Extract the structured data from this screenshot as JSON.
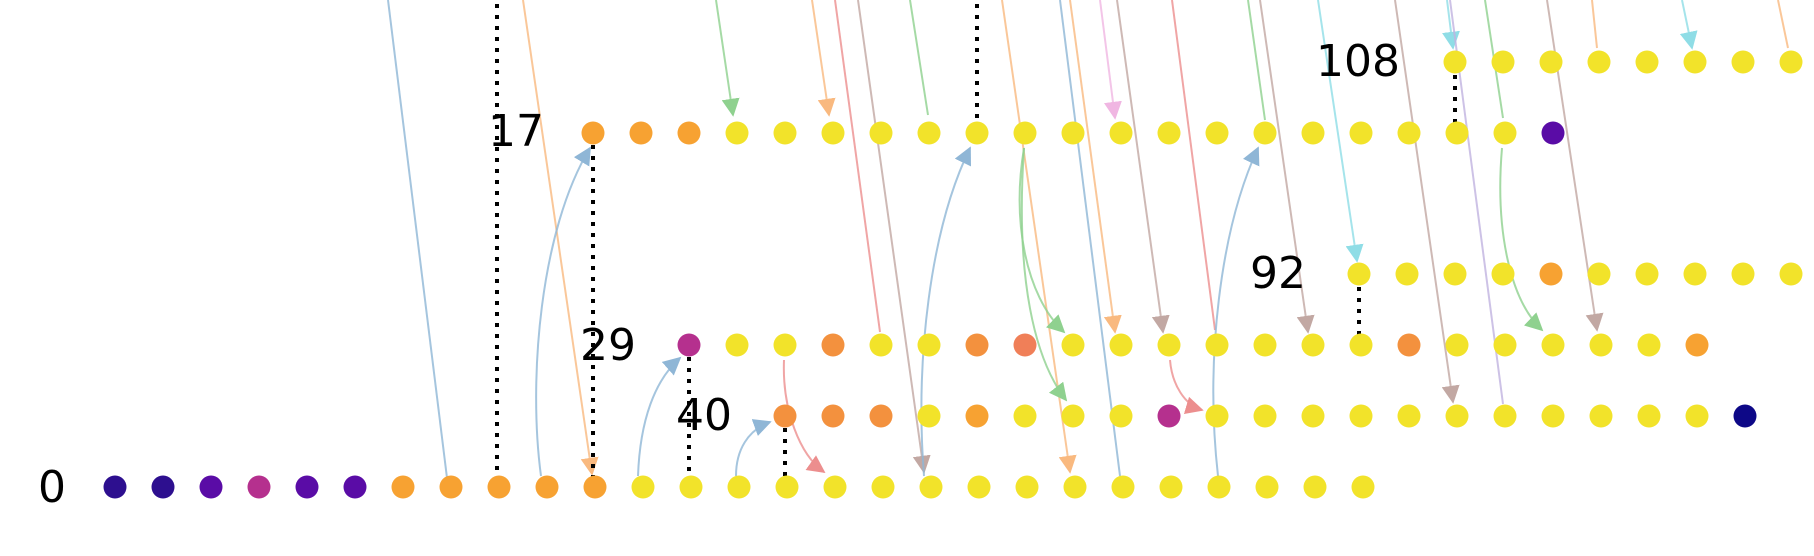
{
  "diagram": {
    "type": "lineage-lanes",
    "palette": {
      "deep_indigo": "#2d0f8f",
      "purple": "#5a0ca6",
      "magenta": "#b5308e",
      "orange": "#f7a232",
      "coral": "#f07f58",
      "dark_orange": "#f3913e",
      "yellow": "#f2e32a",
      "navy": "#0d0887",
      "arc_blue": "#8fb6d6",
      "arc_orange": "#f9b97f",
      "arc_green": "#8fd18f",
      "arc_red": "#ec8e8e",
      "arc_brown": "#c2a8a3",
      "arc_pink": "#f0b6e2",
      "arc_cyan": "#8fdde6",
      "arc_lavender": "#c1b3e0"
    },
    "lanes": [
      {
        "label": "0",
        "nodes": [
          "deep_indigo",
          "deep_indigo",
          "purple",
          "magenta",
          "purple",
          "purple",
          "orange",
          "orange",
          "orange",
          "orange",
          "orange",
          "yellow",
          "yellow",
          "yellow",
          "yellow",
          "yellow",
          "yellow",
          "yellow",
          "yellow",
          "yellow",
          "yellow",
          "yellow",
          "yellow",
          "yellow",
          "yellow",
          "yellow",
          "yellow"
        ]
      },
      {
        "label": "40",
        "nodes": [
          "dark_orange",
          "dark_orange",
          "dark_orange",
          "yellow",
          "orange",
          "yellow",
          "yellow",
          "yellow",
          "magenta",
          "yellow",
          "yellow",
          "yellow",
          "yellow",
          "yellow",
          "yellow",
          "yellow",
          "yellow",
          "yellow",
          "yellow",
          "yellow",
          "navy"
        ]
      },
      {
        "label": "29",
        "nodes": [
          "magenta",
          "yellow",
          "yellow",
          "dark_orange",
          "yellow",
          "yellow",
          "dark_orange",
          "coral",
          "yellow",
          "yellow",
          "yellow",
          "yellow",
          "yellow",
          "yellow",
          "yellow",
          "dark_orange",
          "yellow",
          "yellow",
          "yellow",
          "yellow",
          "yellow",
          "orange"
        ]
      },
      {
        "label": "92",
        "nodes": [
          "yellow",
          "yellow",
          "yellow",
          "yellow",
          "orange",
          "yellow",
          "yellow",
          "yellow",
          "yellow",
          "yellow"
        ]
      },
      {
        "label": "17",
        "nodes": [
          "orange",
          "orange",
          "orange",
          "yellow",
          "yellow",
          "yellow",
          "yellow",
          "yellow",
          "yellow",
          "yellow",
          "yellow",
          "yellow",
          "yellow",
          "yellow",
          "yellow",
          "yellow",
          "yellow",
          "yellow",
          "yellow",
          "yellow",
          "purple"
        ]
      },
      {
        "label": "108",
        "nodes": [
          "yellow",
          "yellow",
          "yellow",
          "yellow",
          "yellow",
          "yellow",
          "yellow",
          "yellow"
        ]
      }
    ]
  }
}
